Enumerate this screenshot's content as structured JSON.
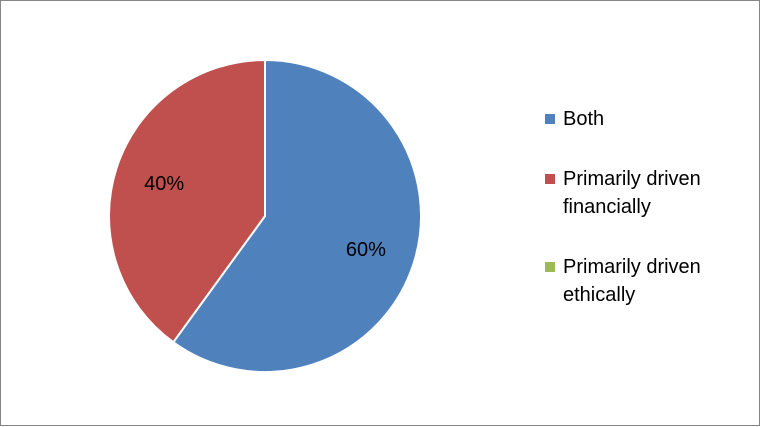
{
  "chart_data": {
    "type": "pie",
    "title": "",
    "series": [
      {
        "name": "Both",
        "value": 60,
        "label": "60%",
        "color": "#4F81BD"
      },
      {
        "name": "Primarily driven financially",
        "value": 40,
        "label": "40%",
        "color": "#C0504D"
      },
      {
        "name": "Primarily driven ethically",
        "value": 0,
        "label": "",
        "color": "#9BBB59"
      }
    ],
    "legend_position": "right"
  }
}
